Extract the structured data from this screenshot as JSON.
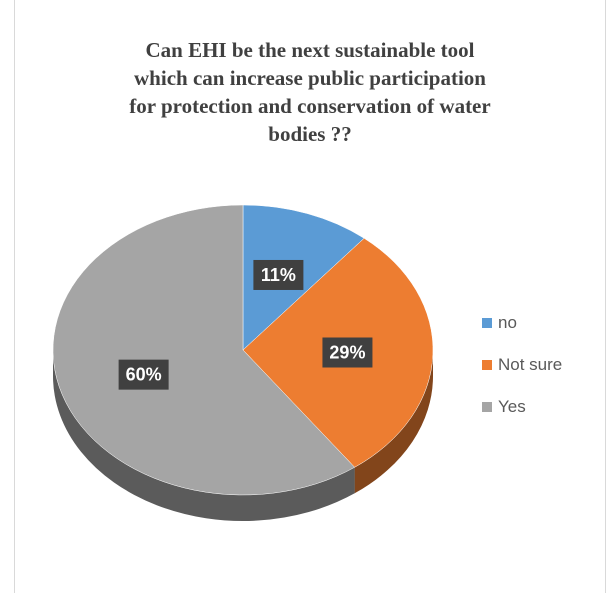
{
  "chart_data": {
    "type": "pie",
    "title": "Can EHI be the next sustainable tool\nwhich can increase public participation\nfor protection and conservation of water\nbodies ??",
    "categories": [
      "no",
      "Not sure",
      "Yes"
    ],
    "values": [
      11,
      29,
      60
    ],
    "labels": [
      "11%",
      "29%",
      "60%"
    ],
    "colors": [
      "#5b9bd5",
      "#ed7d31",
      "#a5a5a5"
    ],
    "style": "3d",
    "legend_position": "right"
  }
}
